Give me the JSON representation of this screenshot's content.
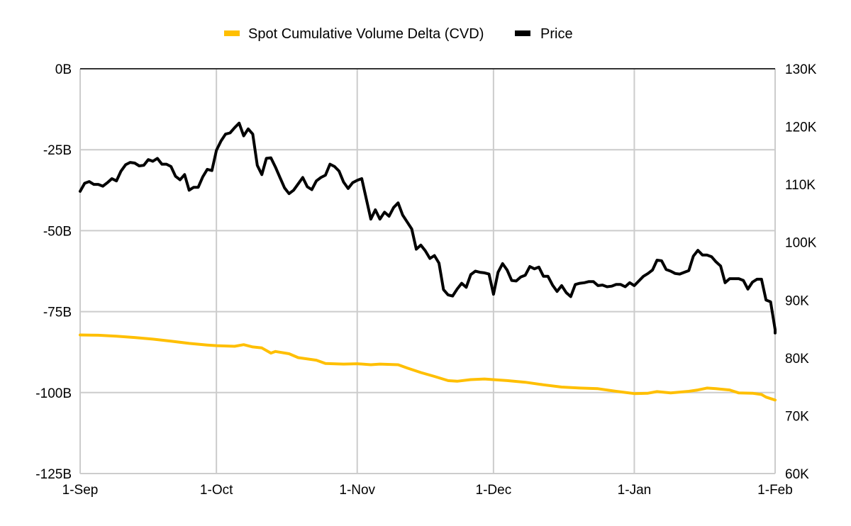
{
  "chart_data": {
    "type": "line",
    "title": "",
    "legend": {
      "placement": "top-center",
      "entries": [
        {
          "label": "Spot Cumulative Volume Delta (CVD)",
          "color": "#FFBF00"
        },
        {
          "label": "Price",
          "color": "#000000"
        }
      ]
    },
    "x_axis": {
      "type": "date",
      "range_days": [
        0,
        153
      ],
      "tick_labels": [
        "1-Sep",
        "1-Oct",
        "1-Nov",
        "1-Dec",
        "1-Jan",
        "1-Feb"
      ],
      "tick_days": [
        0,
        30,
        61,
        91,
        122,
        153
      ]
    },
    "y_axis_left": {
      "label": "",
      "range": [
        -125,
        0
      ],
      "unit": "B",
      "tick_values": [
        0,
        -25,
        -50,
        -75,
        -100,
        -125
      ],
      "tick_labels": [
        "0B",
        "-25B",
        "-50B",
        "-75B",
        "-100B",
        "-125B"
      ]
    },
    "y_axis_right": {
      "label": "",
      "range": [
        60,
        130
      ],
      "unit": "K",
      "tick_values": [
        130,
        120,
        110,
        100,
        90,
        80,
        70,
        60
      ],
      "tick_labels": [
        "130K",
        "120K",
        "110K",
        "100K",
        "90K",
        "80K",
        "70K",
        "60K"
      ]
    },
    "grid": true,
    "series": [
      {
        "name": "Spot Cumulative Volume Delta (CVD)",
        "axis": "left",
        "color": "#FFBF00",
        "points": [
          [
            0,
            -82.2
          ],
          [
            4,
            -82.3
          ],
          [
            8,
            -82.6
          ],
          [
            12,
            -83.0
          ],
          [
            16,
            -83.5
          ],
          [
            20,
            -84.1
          ],
          [
            24,
            -84.8
          ],
          [
            28,
            -85.3
          ],
          [
            30,
            -85.5
          ],
          [
            34,
            -85.7
          ],
          [
            36,
            -85.2
          ],
          [
            38,
            -85.9
          ],
          [
            40,
            -86.2
          ],
          [
            42,
            -87.8
          ],
          [
            43,
            -87.3
          ],
          [
            46,
            -88.0
          ],
          [
            48,
            -89.2
          ],
          [
            52,
            -90.0
          ],
          [
            54,
            -91.0
          ],
          [
            58,
            -91.2
          ],
          [
            61,
            -91.1
          ],
          [
            64,
            -91.4
          ],
          [
            66,
            -91.2
          ],
          [
            70,
            -91.4
          ],
          [
            72,
            -92.4
          ],
          [
            75,
            -93.8
          ],
          [
            78,
            -95.0
          ],
          [
            81,
            -96.3
          ],
          [
            83,
            -96.5
          ],
          [
            86,
            -96.0
          ],
          [
            89,
            -95.8
          ],
          [
            92,
            -96.1
          ],
          [
            94,
            -96.3
          ],
          [
            98,
            -96.8
          ],
          [
            102,
            -97.6
          ],
          [
            106,
            -98.3
          ],
          [
            110,
            -98.6
          ],
          [
            114,
            -98.8
          ],
          [
            118,
            -99.6
          ],
          [
            122,
            -100.3
          ],
          [
            125,
            -100.2
          ],
          [
            127,
            -99.7
          ],
          [
            130,
            -100.1
          ],
          [
            134,
            -99.6
          ],
          [
            136,
            -99.2
          ],
          [
            138,
            -98.6
          ],
          [
            140,
            -98.8
          ],
          [
            143,
            -99.2
          ],
          [
            145,
            -100.1
          ],
          [
            148,
            -100.2
          ],
          [
            150,
            -100.6
          ],
          [
            151,
            -101.4
          ],
          [
            153,
            -102.3
          ]
        ]
      },
      {
        "name": "Price",
        "axis": "right",
        "color": "#000000",
        "points": [
          [
            0,
            108.8
          ],
          [
            1,
            110.2
          ],
          [
            2,
            110.5
          ],
          [
            3,
            110.0
          ],
          [
            4,
            110.0
          ],
          [
            5,
            109.7
          ],
          [
            6,
            110.3
          ],
          [
            7,
            111.0
          ],
          [
            8,
            110.6
          ],
          [
            9,
            112.3
          ],
          [
            10,
            113.4
          ],
          [
            11,
            113.8
          ],
          [
            12,
            113.7
          ],
          [
            13,
            113.2
          ],
          [
            14,
            113.3
          ],
          [
            15,
            114.3
          ],
          [
            16,
            114.0
          ],
          [
            17,
            114.5
          ],
          [
            18,
            113.5
          ],
          [
            19,
            113.5
          ],
          [
            20,
            113.1
          ],
          [
            21,
            111.4
          ],
          [
            22,
            110.8
          ],
          [
            23,
            111.7
          ],
          [
            24,
            109.0
          ],
          [
            25,
            109.5
          ],
          [
            26,
            109.5
          ],
          [
            27,
            111.3
          ],
          [
            28,
            112.6
          ],
          [
            29,
            112.4
          ],
          [
            30,
            115.9
          ],
          [
            31,
            117.5
          ],
          [
            32,
            118.7
          ],
          [
            33,
            118.9
          ],
          [
            34,
            119.8
          ],
          [
            35,
            120.6
          ],
          [
            36,
            118.4
          ],
          [
            37,
            119.6
          ],
          [
            38,
            118.7
          ],
          [
            39,
            113.3
          ],
          [
            40,
            111.7
          ],
          [
            41,
            114.5
          ],
          [
            42,
            114.6
          ],
          [
            43,
            113.0
          ],
          [
            44,
            111.2
          ],
          [
            45,
            109.4
          ],
          [
            46,
            108.4
          ],
          [
            47,
            109.0
          ],
          [
            48,
            110.1
          ],
          [
            49,
            111.2
          ],
          [
            50,
            109.6
          ],
          [
            51,
            109.1
          ],
          [
            52,
            110.6
          ],
          [
            53,
            111.2
          ],
          [
            54,
            111.6
          ],
          [
            55,
            113.5
          ],
          [
            56,
            113.1
          ],
          [
            57,
            112.3
          ],
          [
            58,
            110.4
          ],
          [
            59,
            109.3
          ],
          [
            60,
            110.3
          ],
          [
            61,
            110.7
          ],
          [
            62,
            111.0
          ],
          [
            63,
            107.5
          ],
          [
            64,
            104.0
          ],
          [
            65,
            105.6
          ],
          [
            66,
            104.0
          ],
          [
            67,
            105.2
          ],
          [
            68,
            104.5
          ],
          [
            69,
            106.0
          ],
          [
            70,
            106.8
          ],
          [
            71,
            104.7
          ],
          [
            72,
            103.5
          ],
          [
            73,
            102.3
          ],
          [
            74,
            98.8
          ],
          [
            75,
            99.5
          ],
          [
            76,
            98.5
          ],
          [
            77,
            97.2
          ],
          [
            78,
            97.7
          ],
          [
            79,
            96.4
          ],
          [
            80,
            91.8
          ],
          [
            81,
            90.9
          ],
          [
            82,
            90.7
          ],
          [
            83,
            91.9
          ],
          [
            84,
            92.9
          ],
          [
            85,
            92.2
          ],
          [
            86,
            94.4
          ],
          [
            87,
            95.0
          ],
          [
            88,
            94.8
          ],
          [
            89,
            94.7
          ],
          [
            90,
            94.5
          ],
          [
            91,
            91.0
          ],
          [
            92,
            94.8
          ],
          [
            93,
            96.3
          ],
          [
            94,
            95.2
          ],
          [
            95,
            93.4
          ],
          [
            96,
            93.3
          ],
          [
            97,
            94.0
          ],
          [
            98,
            94.3
          ],
          [
            99,
            95.8
          ],
          [
            100,
            95.4
          ],
          [
            101,
            95.7
          ],
          [
            102,
            94.1
          ],
          [
            103,
            94.1
          ],
          [
            104,
            92.6
          ],
          [
            105,
            91.5
          ],
          [
            106,
            92.5
          ],
          [
            107,
            91.3
          ],
          [
            108,
            90.6
          ],
          [
            109,
            92.7
          ],
          [
            110,
            92.9
          ],
          [
            111,
            93.0
          ],
          [
            112,
            93.2
          ],
          [
            113,
            93.2
          ],
          [
            114,
            92.5
          ],
          [
            115,
            92.6
          ],
          [
            116,
            92.3
          ],
          [
            117,
            92.4
          ],
          [
            118,
            92.7
          ],
          [
            119,
            92.7
          ],
          [
            120,
            92.3
          ],
          [
            121,
            93.0
          ],
          [
            122,
            92.5
          ],
          [
            123,
            93.3
          ],
          [
            124,
            94.1
          ],
          [
            125,
            94.6
          ],
          [
            126,
            95.2
          ],
          [
            127,
            96.9
          ],
          [
            128,
            96.8
          ],
          [
            129,
            95.3
          ],
          [
            130,
            95.0
          ],
          [
            131,
            94.6
          ],
          [
            132,
            94.5
          ],
          [
            133,
            94.8
          ],
          [
            134,
            95.1
          ],
          [
            135,
            97.6
          ],
          [
            136,
            98.6
          ],
          [
            137,
            97.8
          ],
          [
            138,
            97.8
          ],
          [
            139,
            97.5
          ],
          [
            140,
            96.6
          ],
          [
            141,
            95.9
          ],
          [
            142,
            93.0
          ],
          [
            143,
            93.7
          ],
          [
            144,
            93.7
          ],
          [
            145,
            93.7
          ],
          [
            146,
            93.4
          ],
          [
            147,
            91.9
          ],
          [
            148,
            93.1
          ],
          [
            149,
            93.6
          ],
          [
            150,
            93.6
          ],
          [
            151,
            90.0
          ],
          [
            152,
            89.7
          ],
          [
            153,
            84.9
          ],
          [
            153.5,
            84.3
          ]
        ]
      }
    ]
  }
}
